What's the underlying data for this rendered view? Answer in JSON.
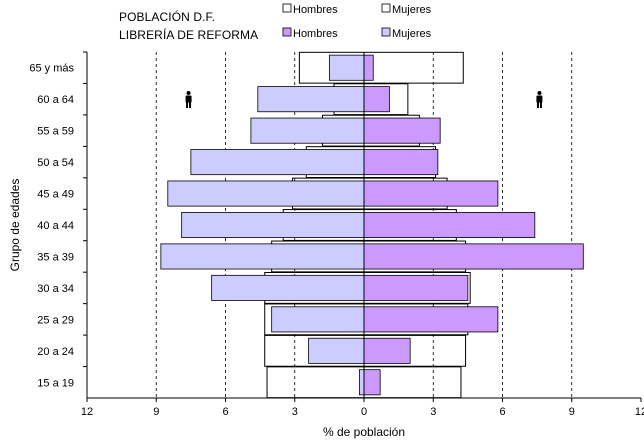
{
  "chart_data": {
    "type": "bar",
    "orientation": "horizontal",
    "layout": "population-pyramid",
    "title": [
      "POBLACIÓN D.F.",
      "LIBRERÍA DE REFORMA"
    ],
    "xlabel": "% de población",
    "ylabel": "Grupo de edades",
    "xlim": [
      -12,
      12
    ],
    "x_ticks": [
      "12",
      "9",
      "6",
      "3",
      "0",
      "3",
      "6",
      "9",
      "12"
    ],
    "grid": "vertical dashed",
    "categories": [
      "15 a 19",
      "20 a 24",
      "25 a 29",
      "30 a 34",
      "35 a 39",
      "40 a 44",
      "45 a 49",
      "50 a 54",
      "55 a 59",
      "60 a 64",
      "65 y más"
    ],
    "series": [
      {
        "name": "Hombres",
        "group": "POBLACIÓN D.F.",
        "side": "left",
        "color": "#ffffff",
        "values": [
          4.2,
          4.3,
          4.3,
          4.3,
          4.0,
          3.5,
          3.1,
          2.5,
          1.8,
          1.3,
          2.8
        ]
      },
      {
        "name": "Mujeres",
        "group": "POBLACIÓN D.F.",
        "side": "right",
        "color": "#ffffff",
        "values": [
          4.2,
          4.4,
          4.5,
          4.6,
          4.4,
          4.0,
          3.6,
          3.1,
          2.4,
          1.9,
          4.3
        ]
      },
      {
        "name": "Hombres",
        "group": "LIBRERÍA DE REFORMA",
        "side": "left",
        "color": "#ccccff",
        "values": [
          0.2,
          2.4,
          4.0,
          6.6,
          8.8,
          7.9,
          8.5,
          7.5,
          4.9,
          4.6,
          1.5
        ]
      },
      {
        "name": "Mujeres",
        "group": "LIBRERÍA DE REFORMA",
        "side": "right",
        "color": "#cc99ff",
        "values": [
          0.7,
          2.0,
          5.8,
          4.5,
          9.5,
          7.4,
          5.8,
          3.2,
          3.3,
          1.1,
          0.4
        ]
      }
    ],
    "legend": {
      "position": "top",
      "items": [
        {
          "label": "Hombres",
          "color": "#ffffff"
        },
        {
          "label": "Mujeres",
          "color": "#ffffff"
        },
        {
          "label": "Hombres",
          "color": "#cc99ff"
        },
        {
          "label": "Mujeres",
          "color": "#ccccff"
        }
      ]
    },
    "icons": [
      "male-figure-icon",
      "male-figure-icon"
    ]
  }
}
